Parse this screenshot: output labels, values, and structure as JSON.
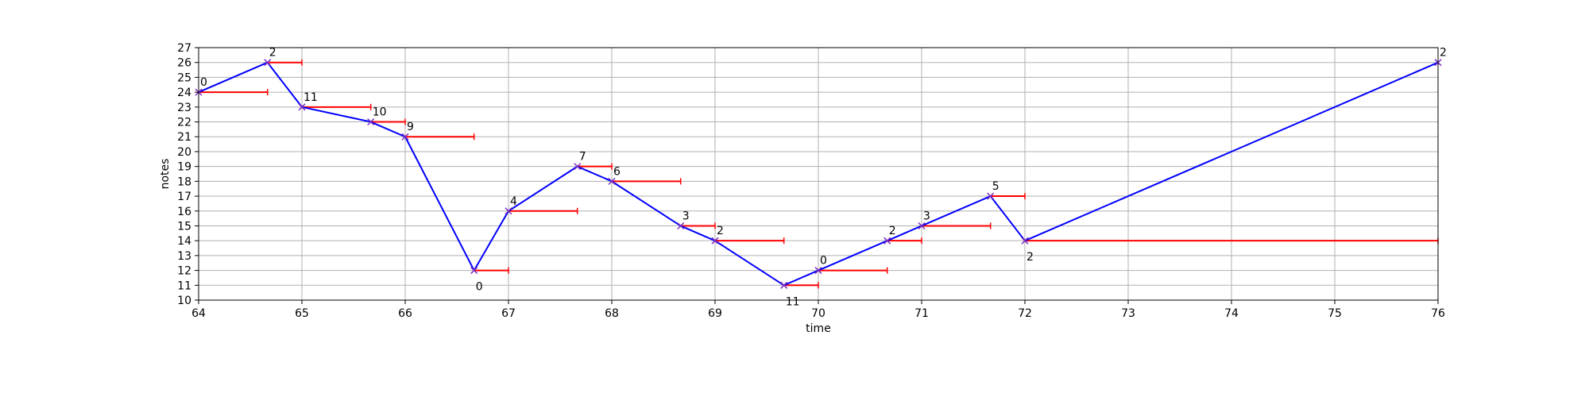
{
  "chart_data": {
    "type": "line",
    "title": "",
    "xlabel": "time",
    "ylabel": "notes",
    "xlim": [
      64,
      76
    ],
    "ylim": [
      10,
      27
    ],
    "x_ticks": [
      "64",
      "65",
      "66",
      "67",
      "68",
      "69",
      "70",
      "71",
      "72",
      "73",
      "74",
      "75",
      "76"
    ],
    "y_ticks": [
      "10",
      "11",
      "12",
      "13",
      "14",
      "15",
      "16",
      "17",
      "18",
      "19",
      "20",
      "21",
      "22",
      "23",
      "24",
      "25",
      "26",
      "27"
    ],
    "grid": true,
    "colors": {
      "line": "#0000ff",
      "duration": "#ff0000",
      "marker": "#7b2fbf",
      "grid": "#b0b0b0"
    },
    "points": [
      {
        "x": 64.0,
        "y": 24,
        "end": 64.667,
        "label": "0",
        "label_pos": "above"
      },
      {
        "x": 64.667,
        "y": 26,
        "end": 65.0,
        "label": "2",
        "label_pos": "above"
      },
      {
        "x": 65.0,
        "y": 23,
        "end": 65.667,
        "label": "11",
        "label_pos": "above"
      },
      {
        "x": 65.667,
        "y": 22,
        "end": 66.0,
        "label": "10",
        "label_pos": "above"
      },
      {
        "x": 66.0,
        "y": 21,
        "end": 66.667,
        "label": "9",
        "label_pos": "above"
      },
      {
        "x": 66.667,
        "y": 12,
        "end": 67.0,
        "label": "0",
        "label_pos": "below"
      },
      {
        "x": 67.0,
        "y": 16,
        "end": 67.667,
        "label": "4",
        "label_pos": "above"
      },
      {
        "x": 67.667,
        "y": 19,
        "end": 68.0,
        "label": "7",
        "label_pos": "above"
      },
      {
        "x": 68.0,
        "y": 18,
        "end": 68.667,
        "label": "6",
        "label_pos": "above"
      },
      {
        "x": 68.667,
        "y": 15,
        "end": 69.0,
        "label": "3",
        "label_pos": "above"
      },
      {
        "x": 69.0,
        "y": 14,
        "end": 69.667,
        "label": "2",
        "label_pos": "above"
      },
      {
        "x": 69.667,
        "y": 11,
        "end": 70.0,
        "label": "11",
        "label_pos": "below"
      },
      {
        "x": 70.0,
        "y": 12,
        "end": 70.667,
        "label": "0",
        "label_pos": "above"
      },
      {
        "x": 70.667,
        "y": 14,
        "end": 71.0,
        "label": "2",
        "label_pos": "above"
      },
      {
        "x": 71.0,
        "y": 15,
        "end": 71.667,
        "label": "3",
        "label_pos": "above"
      },
      {
        "x": 71.667,
        "y": 17,
        "end": 72.0,
        "label": "5",
        "label_pos": "above"
      },
      {
        "x": 72.0,
        "y": 14,
        "end": 76.0,
        "label": "2",
        "label_pos": "below"
      },
      {
        "x": 76.0,
        "y": 26,
        "end": 76.0,
        "label": "2",
        "label_pos": "above"
      }
    ]
  }
}
